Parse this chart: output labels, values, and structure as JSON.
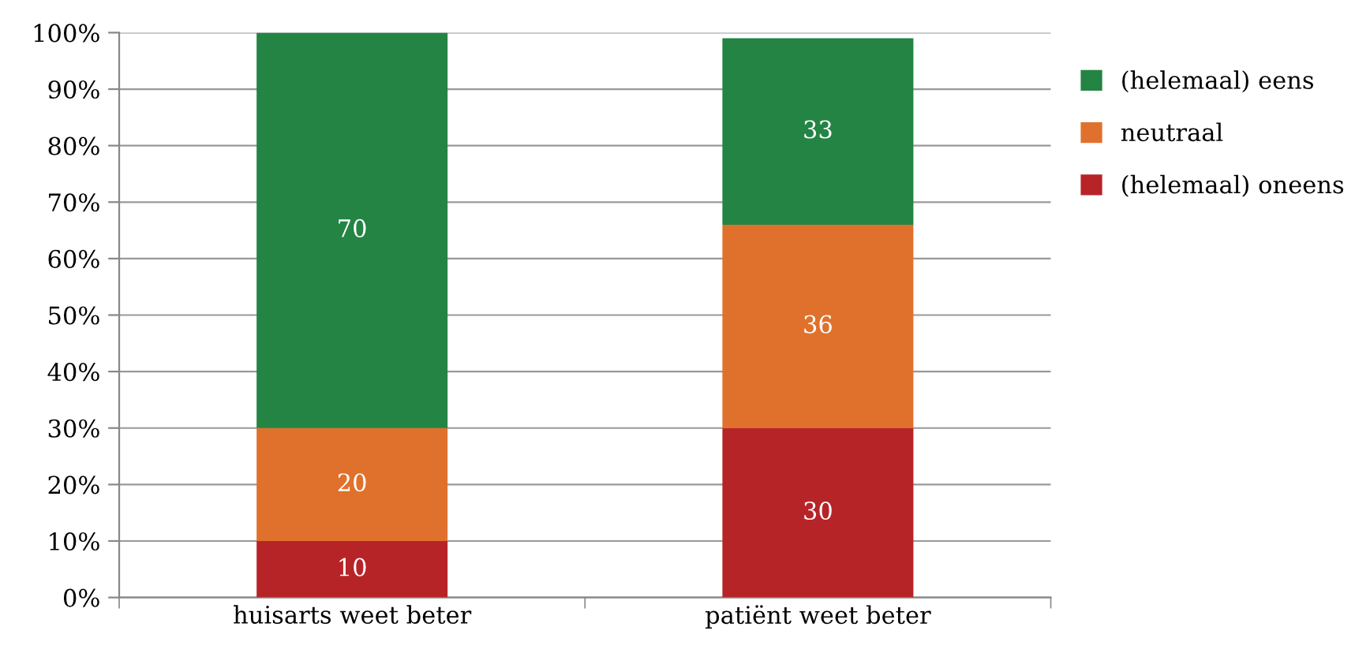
{
  "chart_data": {
    "type": "bar",
    "stacked": true,
    "categories": [
      "huisarts weet beter",
      "patiënt weet beter"
    ],
    "series": [
      {
        "name": "(helemaal) oneens",
        "color": "#b72428",
        "values": [
          10,
          30
        ]
      },
      {
        "name": "neutraal",
        "color": "#e0712c",
        "values": [
          20,
          36
        ]
      },
      {
        "name": "(helemaal) eens",
        "color": "#238443",
        "values": [
          70,
          33
        ]
      }
    ],
    "ylim": [
      0,
      100
    ],
    "yticks": [
      {
        "value": 0,
        "label": "0%"
      },
      {
        "value": 10,
        "label": "10%"
      },
      {
        "value": 20,
        "label": "20%"
      },
      {
        "value": 30,
        "label": "30%"
      },
      {
        "value": 40,
        "label": "40%"
      },
      {
        "value": 50,
        "label": "50%"
      },
      {
        "value": 60,
        "label": "60%"
      },
      {
        "value": 70,
        "label": "70%"
      },
      {
        "value": 80,
        "label": "80%"
      },
      {
        "value": 90,
        "label": "90%"
      },
      {
        "value": 100,
        "label": "100%"
      }
    ],
    "grid": "y",
    "legend": "right",
    "data_labels": true
  }
}
